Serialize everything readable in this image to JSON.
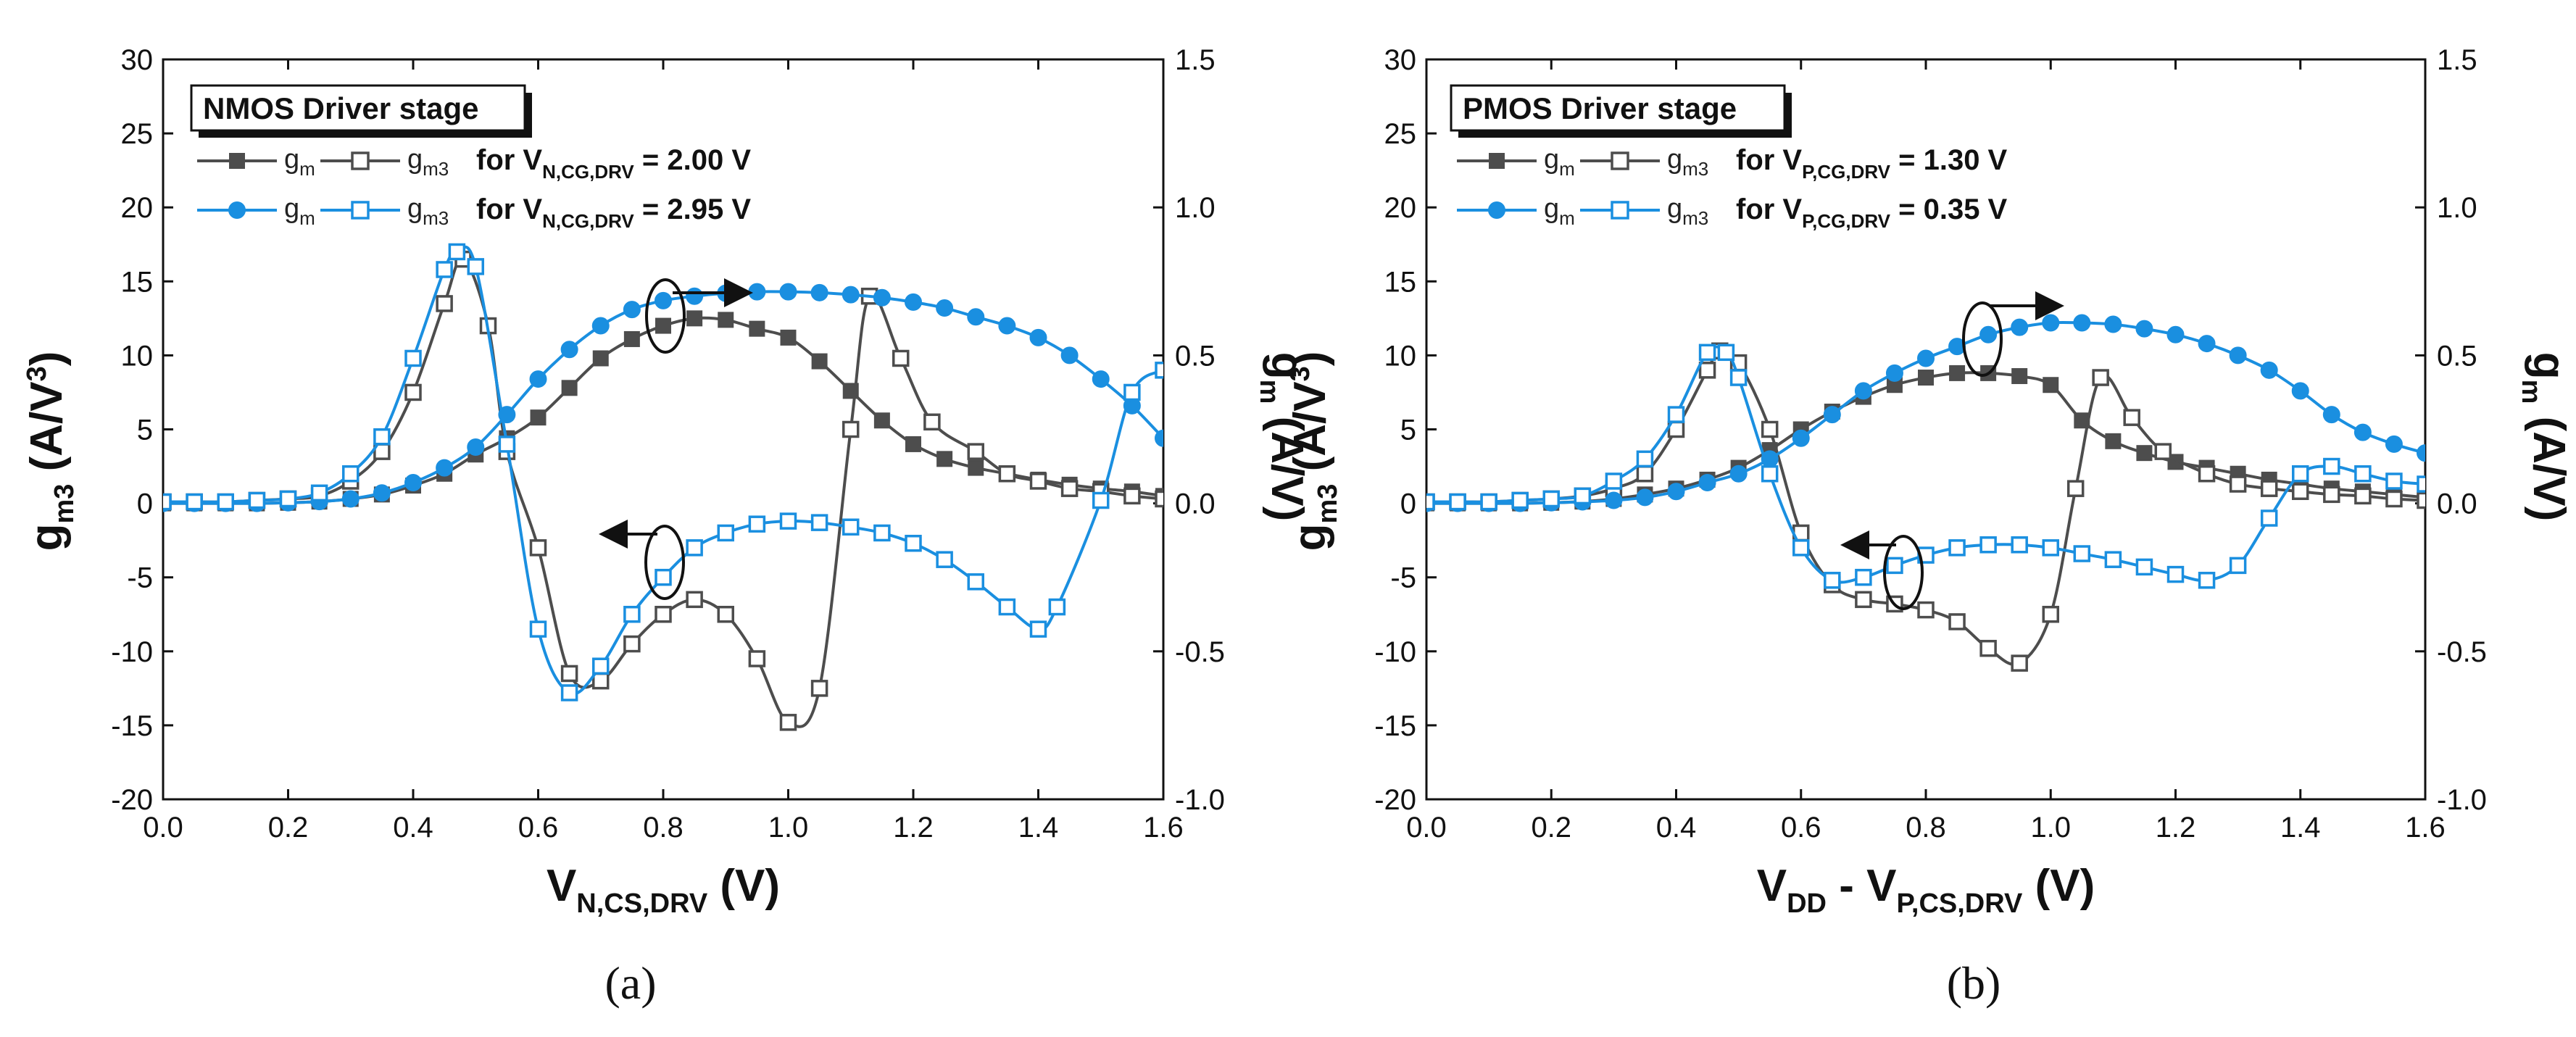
{
  "figure": {
    "colors": {
      "black_series": "#4d4d4d",
      "blue_series": "#1a8fe0",
      "axis": "#111111"
    }
  },
  "chart_data": [
    {
      "type": "line",
      "panel_label": "(a)",
      "title": "NMOS Driver stage",
      "xlabel": {
        "main": "V",
        "sub": "N,CS,DRV",
        "unit": "(V)"
      },
      "ylabel_left": {
        "main": "g",
        "sub": "m3",
        "unit": "(A/V",
        "sup": "3",
        "close": ")"
      },
      "ylabel_right": {
        "main": "g",
        "sub": "m",
        "unit": "(A/V)"
      },
      "xlim": [
        0,
        1.6
      ],
      "ylim_left": [
        -20,
        30
      ],
      "ylim_right": [
        -1.0,
        1.5
      ],
      "xticks": [
        "0.0",
        "0.2",
        "0.4",
        "0.6",
        "0.8",
        "1.0",
        "1.2",
        "1.4",
        "1.6"
      ],
      "yticks_left": [
        "-20",
        "-15",
        "-10",
        "-5",
        "0",
        "5",
        "10",
        "15",
        "20",
        "25",
        "30"
      ],
      "yticks_right": [
        "-1.0",
        "-0.5",
        "0.0",
        "0.5",
        "1.0",
        "1.5"
      ],
      "legend": [
        {
          "gm_label": "g",
          "gm_sub": "m",
          "gm3_label": "g",
          "gm3_sub": "m3",
          "cond_pre": "for V",
          "cond_sub": "N,CG,DRV",
          "cond_post": " = 2.00 V",
          "color": "#4d4d4d",
          "marker_gm": "square-filled",
          "marker_gm3": "square-open"
        },
        {
          "gm_label": "g",
          "gm_sub": "m",
          "gm3_label": "g",
          "gm3_sub": "m3",
          "cond_pre": "for V",
          "cond_sub": "N,CG,DRV",
          "cond_post": " = 2.95 V",
          "color": "#1a8fe0",
          "marker_gm": "circle-filled",
          "marker_gm3": "square-open"
        }
      ],
      "series": [
        {
          "name": "gm (VN,CG,DRV = 2.00 V)",
          "axis": "right",
          "color": "#4d4d4d",
          "marker": "square-filled",
          "x": [
            0,
            0.05,
            0.1,
            0.15,
            0.2,
            0.25,
            0.3,
            0.35,
            0.4,
            0.45,
            0.5,
            0.55,
            0.6,
            0.65,
            0.7,
            0.75,
            0.8,
            0.85,
            0.9,
            0.95,
            1.0,
            1.05,
            1.1,
            1.15,
            1.2,
            1.25,
            1.3,
            1.35,
            1.4,
            1.45,
            1.5,
            1.55,
            1.6
          ],
          "y": [
            0.0,
            0.0,
            0.0,
            0.0,
            0.002,
            0.006,
            0.015,
            0.03,
            0.06,
            0.1,
            0.165,
            0.22,
            0.29,
            0.39,
            0.49,
            0.555,
            0.6,
            0.625,
            0.62,
            0.59,
            0.56,
            0.48,
            0.38,
            0.28,
            0.2,
            0.15,
            0.12,
            0.1,
            0.08,
            0.063,
            0.05,
            0.04,
            0.025
          ]
        },
        {
          "name": "gm3 (VN,CG,DRV = 2.00 V)",
          "axis": "left",
          "color": "#4d4d4d",
          "marker": "square-open",
          "x": [
            0,
            0.05,
            0.1,
            0.15,
            0.2,
            0.25,
            0.3,
            0.35,
            0.4,
            0.45,
            0.48,
            0.52,
            0.55,
            0.6,
            0.65,
            0.7,
            0.75,
            0.8,
            0.85,
            0.9,
            0.95,
            1.0,
            1.05,
            1.1,
            1.13,
            1.18,
            1.23,
            1.3,
            1.35,
            1.4,
            1.45,
            1.5,
            1.55,
            1.6
          ],
          "y": [
            0.1,
            0.1,
            0.1,
            0.2,
            0.3,
            0.5,
            1.5,
            3.5,
            7.5,
            13.5,
            16.5,
            12.0,
            3.5,
            -3.0,
            -11.5,
            -12.0,
            -9.5,
            -7.5,
            -6.5,
            -7.5,
            -10.5,
            -14.8,
            -12.5,
            5.0,
            14.0,
            9.8,
            5.5,
            3.5,
            2.0,
            1.5,
            1.0,
            0.8,
            0.5,
            0.3
          ]
        },
        {
          "name": "gm (VN,CG,DRV = 2.95 V)",
          "axis": "right",
          "color": "#1a8fe0",
          "marker": "circle-filled",
          "x": [
            0,
            0.05,
            0.1,
            0.15,
            0.2,
            0.25,
            0.3,
            0.35,
            0.4,
            0.45,
            0.5,
            0.55,
            0.6,
            0.65,
            0.7,
            0.75,
            0.8,
            0.85,
            0.9,
            0.95,
            1.0,
            1.05,
            1.1,
            1.15,
            1.2,
            1.25,
            1.3,
            1.35,
            1.4,
            1.45,
            1.5,
            1.55,
            1.6
          ],
          "y": [
            0.0,
            0.0,
            0.0,
            0.0,
            0.002,
            0.006,
            0.015,
            0.035,
            0.07,
            0.12,
            0.19,
            0.3,
            0.42,
            0.52,
            0.6,
            0.655,
            0.685,
            0.7,
            0.71,
            0.715,
            0.715,
            0.712,
            0.705,
            0.695,
            0.68,
            0.66,
            0.63,
            0.6,
            0.56,
            0.5,
            0.42,
            0.33,
            0.22
          ]
        },
        {
          "name": "gm3 (VN,CG,DRV = 2.95 V)",
          "axis": "left",
          "color": "#1a8fe0",
          "marker": "square-open",
          "x": [
            0,
            0.05,
            0.1,
            0.15,
            0.2,
            0.25,
            0.3,
            0.35,
            0.4,
            0.45,
            0.47,
            0.5,
            0.55,
            0.6,
            0.65,
            0.7,
            0.75,
            0.8,
            0.85,
            0.9,
            0.95,
            1.0,
            1.05,
            1.1,
            1.15,
            1.2,
            1.25,
            1.3,
            1.35,
            1.4,
            1.43,
            1.5,
            1.55,
            1.6
          ],
          "y": [
            0.1,
            0.1,
            0.1,
            0.2,
            0.3,
            0.7,
            2.0,
            4.5,
            9.8,
            15.8,
            17.0,
            16.0,
            4.0,
            -8.5,
            -12.8,
            -11.0,
            -7.5,
            -5.0,
            -3.0,
            -2.0,
            -1.4,
            -1.2,
            -1.3,
            -1.6,
            -2.0,
            -2.7,
            -3.8,
            -5.3,
            -7.0,
            -8.5,
            -7.0,
            0.2,
            7.5,
            9.0
          ]
        }
      ]
    },
    {
      "type": "line",
      "panel_label": "(b)",
      "title": "PMOS Driver stage",
      "xlabel": {
        "main": "V",
        "sub": "DD",
        "mid": " - V",
        "sub2": "P,CS,DRV",
        "unit": "(V)"
      },
      "ylabel_left": {
        "main": "g",
        "sub": "m3",
        "unit": "(A/V",
        "sup": "3",
        "close": ")"
      },
      "ylabel_right": {
        "main": "g",
        "sub": "m",
        "unit": "(A/V)"
      },
      "xlim": [
        0,
        1.6
      ],
      "ylim_left": [
        -20,
        30
      ],
      "ylim_right": [
        -1.0,
        1.5
      ],
      "xticks": [
        "0.0",
        "0.2",
        "0.4",
        "0.6",
        "0.8",
        "1.0",
        "1.2",
        "1.4",
        "1.6"
      ],
      "yticks_left": [
        "-20",
        "-15",
        "-10",
        "-5",
        "0",
        "5",
        "10",
        "15",
        "20",
        "25",
        "30"
      ],
      "yticks_right": [
        "-1.0",
        "-0.5",
        "0.0",
        "0.5",
        "1.0",
        "1.5"
      ],
      "legend": [
        {
          "gm_label": "g",
          "gm_sub": "m",
          "gm3_label": "g",
          "gm3_sub": "m3",
          "cond_pre": "for V",
          "cond_sub": "P,CG,DRV",
          "cond_post": " = 1.30 V",
          "color": "#4d4d4d",
          "marker_gm": "square-filled",
          "marker_gm3": "square-open"
        },
        {
          "gm_label": "g",
          "gm_sub": "m",
          "gm3_label": "g",
          "gm3_sub": "m3",
          "cond_pre": "for V",
          "cond_sub": "P,CG,DRV",
          "cond_post": " = 0.35 V",
          "color": "#1a8fe0",
          "marker_gm": "circle-filled",
          "marker_gm3": "square-open"
        }
      ],
      "series": [
        {
          "name": "gm (VP,CG,DRV = 1.30 V)",
          "axis": "right",
          "color": "#4d4d4d",
          "marker": "square-filled",
          "x": [
            0,
            0.05,
            0.1,
            0.15,
            0.2,
            0.25,
            0.3,
            0.35,
            0.4,
            0.45,
            0.5,
            0.55,
            0.6,
            0.65,
            0.7,
            0.75,
            0.8,
            0.85,
            0.9,
            0.95,
            1.0,
            1.05,
            1.1,
            1.15,
            1.2,
            1.25,
            1.3,
            1.35,
            1.4,
            1.45,
            1.5,
            1.55,
            1.6
          ],
          "y": [
            0.0,
            0.0,
            0.0,
            0.0,
            0.002,
            0.006,
            0.015,
            0.03,
            0.05,
            0.08,
            0.12,
            0.18,
            0.25,
            0.31,
            0.36,
            0.4,
            0.425,
            0.44,
            0.44,
            0.43,
            0.4,
            0.28,
            0.21,
            0.17,
            0.14,
            0.12,
            0.1,
            0.08,
            0.065,
            0.05,
            0.04,
            0.03,
            0.02
          ]
        },
        {
          "name": "gm3 (VP,CG,DRV = 1.30 V)",
          "axis": "left",
          "color": "#4d4d4d",
          "marker": "square-open",
          "x": [
            0,
            0.05,
            0.1,
            0.15,
            0.2,
            0.25,
            0.3,
            0.35,
            0.4,
            0.45,
            0.47,
            0.5,
            0.55,
            0.6,
            0.65,
            0.7,
            0.75,
            0.8,
            0.85,
            0.9,
            0.95,
            1.0,
            1.04,
            1.08,
            1.13,
            1.18,
            1.25,
            1.3,
            1.35,
            1.4,
            1.45,
            1.5,
            1.55,
            1.6
          ],
          "y": [
            0.1,
            0.1,
            0.1,
            0.2,
            0.3,
            0.5,
            1.0,
            2.0,
            5.0,
            9.0,
            10.3,
            9.5,
            5.0,
            -2.0,
            -5.5,
            -6.5,
            -6.8,
            -7.2,
            -8.0,
            -9.8,
            -10.8,
            -7.5,
            1.0,
            8.5,
            5.8,
            3.5,
            2.0,
            1.3,
            1.0,
            0.8,
            0.6,
            0.5,
            0.3,
            0.2
          ]
        },
        {
          "name": "gm (VP,CG,DRV = 0.35 V)",
          "axis": "right",
          "color": "#1a8fe0",
          "marker": "circle-filled",
          "x": [
            0,
            0.05,
            0.1,
            0.15,
            0.2,
            0.25,
            0.3,
            0.35,
            0.4,
            0.45,
            0.5,
            0.55,
            0.6,
            0.65,
            0.7,
            0.75,
            0.8,
            0.85,
            0.9,
            0.95,
            1.0,
            1.05,
            1.1,
            1.15,
            1.2,
            1.25,
            1.3,
            1.35,
            1.4,
            1.45,
            1.5,
            1.55,
            1.6
          ],
          "y": [
            0.0,
            0.0,
            0.0,
            0.0,
            0.002,
            0.005,
            0.01,
            0.02,
            0.04,
            0.07,
            0.1,
            0.15,
            0.22,
            0.3,
            0.38,
            0.44,
            0.49,
            0.53,
            0.57,
            0.595,
            0.61,
            0.61,
            0.605,
            0.59,
            0.57,
            0.54,
            0.5,
            0.45,
            0.38,
            0.3,
            0.24,
            0.2,
            0.17
          ]
        },
        {
          "name": "gm3 (VP,CG,DRV = 0.35 V)",
          "axis": "left",
          "color": "#1a8fe0",
          "marker": "square-open",
          "x": [
            0,
            0.05,
            0.1,
            0.15,
            0.2,
            0.25,
            0.3,
            0.35,
            0.4,
            0.45,
            0.48,
            0.5,
            0.55,
            0.6,
            0.65,
            0.7,
            0.75,
            0.8,
            0.85,
            0.9,
            0.95,
            1.0,
            1.05,
            1.1,
            1.15,
            1.2,
            1.25,
            1.3,
            1.35,
            1.4,
            1.45,
            1.5,
            1.55,
            1.6
          ],
          "y": [
            0.1,
            0.1,
            0.1,
            0.2,
            0.3,
            0.5,
            1.5,
            3.0,
            6.0,
            10.2,
            10.2,
            8.5,
            2.0,
            -3.0,
            -5.2,
            -5.0,
            -4.2,
            -3.5,
            -3.0,
            -2.8,
            -2.8,
            -3.0,
            -3.4,
            -3.8,
            -4.3,
            -4.8,
            -5.2,
            -4.2,
            -1.0,
            2.0,
            2.5,
            2.0,
            1.5,
            1.3
          ]
        }
      ]
    }
  ]
}
